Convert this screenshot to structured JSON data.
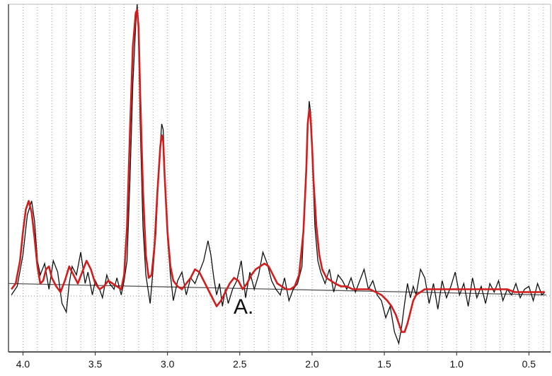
{
  "chart_data": {
    "type": "line",
    "title": "",
    "xlabel": "",
    "ylabel": "",
    "x_reversed": true,
    "xlim": [
      4.1,
      0.35
    ],
    "ylim": [
      -0.22,
      1.0
    ],
    "grid": "vertical dotted",
    "tick_labels": [
      "4.0",
      "3.5",
      "3.0",
      "2.5",
      "2.0",
      "1.5",
      "1.0",
      "0.5"
    ],
    "annotation": "A.",
    "colors": {
      "observed": "#111111",
      "fit": "#d41c1c",
      "baseline": "#555555",
      "grid": "#9a9a9a"
    },
    "baseline": {
      "x": [
        4.1,
        0.38
      ],
      "y": [
        0.02,
        -0.02
      ]
    },
    "series": [
      {
        "role": "observed",
        "x": [
          4.08,
          4.04,
          4.0,
          3.97,
          3.94,
          3.92,
          3.9,
          3.88,
          3.85,
          3.82,
          3.79,
          3.76,
          3.73,
          3.7,
          3.68,
          3.66,
          3.63,
          3.6,
          3.57,
          3.55,
          3.52,
          3.5,
          3.47,
          3.45,
          3.42,
          3.4,
          3.37,
          3.35,
          3.32,
          3.3,
          3.28,
          3.26,
          3.24,
          3.22,
          3.21,
          3.2,
          3.19,
          3.17,
          3.15,
          3.12,
          3.1,
          3.08,
          3.06,
          3.04,
          3.03,
          3.02,
          3.0,
          2.98,
          2.96,
          2.93,
          2.9,
          2.87,
          2.84,
          2.81,
          2.78,
          2.75,
          2.72,
          2.7,
          2.68,
          2.66,
          2.64,
          2.62,
          2.6,
          2.58,
          2.55,
          2.52,
          2.49,
          2.46,
          2.43,
          2.4,
          2.37,
          2.34,
          2.31,
          2.28,
          2.25,
          2.22,
          2.19,
          2.16,
          2.13,
          2.1,
          2.07,
          2.05,
          2.03,
          2.02,
          2.01,
          2.0,
          1.98,
          1.96,
          1.94,
          1.91,
          1.88,
          1.85,
          1.82,
          1.79,
          1.76,
          1.73,
          1.7,
          1.67,
          1.64,
          1.61,
          1.58,
          1.55,
          1.52,
          1.49,
          1.46,
          1.43,
          1.4,
          1.38,
          1.36,
          1.34,
          1.32,
          1.3,
          1.28,
          1.25,
          1.22,
          1.19,
          1.16,
          1.13,
          1.1,
          1.07,
          1.04,
          1.01,
          0.98,
          0.95,
          0.92,
          0.89,
          0.86,
          0.83,
          0.8,
          0.77,
          0.74,
          0.71,
          0.68,
          0.65,
          0.62,
          0.59,
          0.56,
          0.53,
          0.5,
          0.47,
          0.44,
          0.41,
          0.39
        ],
        "y": [
          -0.02,
          0.01,
          0.12,
          0.26,
          0.31,
          0.24,
          0.1,
          0.05,
          0.09,
          0.0,
          0.1,
          0.06,
          -0.05,
          -0.08,
          0.02,
          0.08,
          0.05,
          0.13,
          0.02,
          0.06,
          -0.02,
          0.03,
          0.0,
          -0.03,
          0.05,
          0.02,
          0.0,
          0.04,
          -0.02,
          0.03,
          0.1,
          0.38,
          0.72,
          0.93,
          1.0,
          0.9,
          0.6,
          0.22,
          0.05,
          -0.05,
          0.07,
          0.2,
          0.43,
          0.58,
          0.56,
          0.42,
          0.18,
          0.05,
          -0.04,
          0.03,
          0.06,
          -0.02,
          0.04,
          0.02,
          0.06,
          0.1,
          0.17,
          0.12,
          0.04,
          -0.02,
          0.02,
          -0.06,
          0.0,
          -0.05,
          0.0,
          0.03,
          0.1,
          -0.03,
          0.06,
          0.0,
          0.05,
          0.13,
          0.09,
          0.03,
          0.0,
          -0.02,
          0.04,
          -0.04,
          0.0,
          0.02,
          0.08,
          0.3,
          0.55,
          0.66,
          0.62,
          0.48,
          0.22,
          0.1,
          0.06,
          0.02,
          0.07,
          -0.01,
          0.05,
          0.03,
          0.0,
          0.04,
          -0.01,
          0.03,
          0.07,
          0.0,
          0.03,
          -0.02,
          -0.04,
          -0.1,
          -0.06,
          -0.15,
          -0.19,
          -0.13,
          -0.05,
          0.02,
          -0.03,
          0.01,
          -0.02,
          0.07,
          0.04,
          -0.05,
          0.02,
          -0.07,
          0.03,
          -0.03,
          0.01,
          0.06,
          -0.02,
          0.02,
          -0.06,
          0.04,
          -0.03,
          0.01,
          -0.05,
          0.02,
          -0.01,
          0.03,
          -0.04,
          0.0,
          -0.02,
          0.02,
          -0.03,
          0.0,
          0.01,
          -0.04,
          0.02,
          -0.02,
          -0.01
        ]
      },
      {
        "role": "fit",
        "x": [
          4.08,
          4.05,
          4.02,
          4.0,
          3.98,
          3.96,
          3.94,
          3.92,
          3.9,
          3.88,
          3.86,
          3.84,
          3.82,
          3.8,
          3.77,
          3.74,
          3.71,
          3.68,
          3.65,
          3.62,
          3.59,
          3.56,
          3.53,
          3.5,
          3.47,
          3.44,
          3.41,
          3.38,
          3.35,
          3.32,
          3.3,
          3.28,
          3.26,
          3.24,
          3.22,
          3.21,
          3.2,
          3.19,
          3.17,
          3.15,
          3.13,
          3.11,
          3.09,
          3.07,
          3.05,
          3.04,
          3.03,
          3.02,
          3.0,
          2.98,
          2.96,
          2.93,
          2.9,
          2.87,
          2.84,
          2.81,
          2.78,
          2.75,
          2.72,
          2.69,
          2.66,
          2.63,
          2.6,
          2.57,
          2.54,
          2.51,
          2.48,
          2.45,
          2.42,
          2.39,
          2.36,
          2.33,
          2.3,
          2.27,
          2.24,
          2.21,
          2.18,
          2.15,
          2.12,
          2.09,
          2.06,
          2.04,
          2.03,
          2.02,
          2.01,
          2.0,
          1.99,
          1.97,
          1.95,
          1.93,
          1.9,
          1.87,
          1.84,
          1.8,
          1.76,
          1.72,
          1.68,
          1.64,
          1.6,
          1.56,
          1.52,
          1.48,
          1.45,
          1.42,
          1.4,
          1.38,
          1.36,
          1.34,
          1.32,
          1.3,
          1.28,
          1.25,
          1.22,
          1.18,
          1.14,
          1.1,
          1.05,
          1.0,
          0.95,
          0.9,
          0.85,
          0.8,
          0.75,
          0.7,
          0.65,
          0.6,
          0.55,
          0.5,
          0.45,
          0.41,
          0.39
        ],
        "y": [
          0.0,
          0.02,
          0.1,
          0.2,
          0.28,
          0.31,
          0.27,
          0.18,
          0.08,
          0.02,
          0.03,
          0.07,
          0.08,
          0.04,
          0.01,
          -0.01,
          0.03,
          0.08,
          0.05,
          0.02,
          0.06,
          0.1,
          0.07,
          0.02,
          0.0,
          0.01,
          0.03,
          0.02,
          0.01,
          0.0,
          0.05,
          0.22,
          0.55,
          0.85,
          0.97,
          0.98,
          0.92,
          0.7,
          0.35,
          0.12,
          0.04,
          0.05,
          0.15,
          0.34,
          0.5,
          0.54,
          0.52,
          0.4,
          0.2,
          0.08,
          0.03,
          0.01,
          0.0,
          0.02,
          0.04,
          0.07,
          0.06,
          0.03,
          0.0,
          -0.03,
          -0.06,
          -0.04,
          -0.01,
          0.02,
          0.04,
          0.03,
          0.0,
          0.02,
          0.05,
          0.07,
          0.08,
          0.09,
          0.08,
          0.05,
          0.02,
          0.01,
          0.0,
          0.0,
          0.01,
          0.05,
          0.2,
          0.42,
          0.58,
          0.63,
          0.6,
          0.5,
          0.38,
          0.22,
          0.12,
          0.07,
          0.04,
          0.03,
          0.02,
          0.01,
          0.01,
          0.0,
          0.0,
          0.0,
          0.0,
          -0.01,
          -0.02,
          -0.04,
          -0.06,
          -0.09,
          -0.12,
          -0.15,
          -0.15,
          -0.12,
          -0.08,
          -0.04,
          -0.02,
          -0.01,
          0.0,
          0.0,
          0.0,
          0.0,
          0.0,
          0.0,
          0.0,
          0.0,
          0.0,
          0.0,
          0.0,
          0.0,
          0.0,
          -0.01,
          -0.01,
          -0.01,
          -0.01,
          -0.01,
          -0.01
        ]
      }
    ]
  }
}
